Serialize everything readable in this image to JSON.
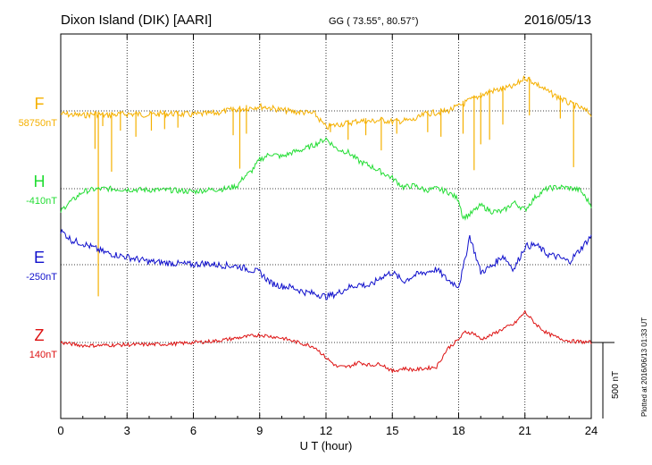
{
  "header": {
    "station": "Dixon Island (DIK)  [AARI]",
    "coords": "GG ( 73.55°,  80.57°)",
    "date": "2016/05/13"
  },
  "plotted_note": "Plotted at 2016/06/13 01:33 UT",
  "chart_data": {
    "type": "line",
    "xlabel": "U T (hour)",
    "xlim": [
      0,
      24
    ],
    "xticks": [
      0,
      3,
      6,
      9,
      12,
      15,
      18,
      21,
      24
    ],
    "xtick_labels": [
      "0",
      "3",
      "6",
      "9",
      "12",
      "15",
      "18",
      "21",
      "24"
    ],
    "grid": true,
    "scale_bar": {
      "label": "500 nT",
      "value_nT": 500
    },
    "series": [
      {
        "name": "F",
        "baseline_label": "58750nT",
        "baseline": 58750,
        "color": "#f5b000",
        "x": [
          0,
          0.5,
          1,
          1.5,
          2,
          2.5,
          3,
          3.5,
          4,
          4.5,
          5,
          5.5,
          6,
          6.5,
          7,
          7.5,
          8,
          8.5,
          9,
          9.5,
          10,
          10.5,
          11,
          11.5,
          12,
          12.5,
          13,
          13.5,
          14,
          14.5,
          15,
          15.5,
          16,
          16.5,
          17,
          17.5,
          18,
          18.5,
          19,
          19.5,
          20,
          20.5,
          21,
          21.5,
          22,
          22.5,
          23,
          23.5,
          24
        ],
        "y": [
          58750,
          58745,
          58740,
          58750,
          58740,
          58745,
          58750,
          58748,
          58745,
          58750,
          58752,
          58748,
          58745,
          58750,
          58755,
          58770,
          58780,
          58790,
          58800,
          58790,
          58775,
          58765,
          58760,
          58750,
          58660,
          58680,
          58690,
          58705,
          58700,
          58710,
          58700,
          58705,
          58710,
          58750,
          58760,
          58770,
          58800,
          58840,
          58870,
          58900,
          58915,
          58930,
          58990,
          58950,
          58900,
          58860,
          58820,
          58790,
          58750
        ],
        "spikes": [
          {
            "x": 1.55,
            "y": 58500
          },
          {
            "x": 1.7,
            "y": 57530
          },
          {
            "x": 1.9,
            "y": 58650
          },
          {
            "x": 2.3,
            "y": 58350
          },
          {
            "x": 2.7,
            "y": 58620
          },
          {
            "x": 3.4,
            "y": 58580
          },
          {
            "x": 4.1,
            "y": 58620
          },
          {
            "x": 4.7,
            "y": 58630
          },
          {
            "x": 5.3,
            "y": 58640
          },
          {
            "x": 7.8,
            "y": 58590
          },
          {
            "x": 8.1,
            "y": 58370
          },
          {
            "x": 8.4,
            "y": 58600
          },
          {
            "x": 12.2,
            "y": 58610
          },
          {
            "x": 13.0,
            "y": 58560
          },
          {
            "x": 13.8,
            "y": 58590
          },
          {
            "x": 14.5,
            "y": 58490
          },
          {
            "x": 15.2,
            "y": 58600
          },
          {
            "x": 16.6,
            "y": 58610
          },
          {
            "x": 17.2,
            "y": 58580
          },
          {
            "x": 18.2,
            "y": 58600
          },
          {
            "x": 18.7,
            "y": 58360
          },
          {
            "x": 19.0,
            "y": 58530
          },
          {
            "x": 19.4,
            "y": 58560
          },
          {
            "x": 20.0,
            "y": 58660
          },
          {
            "x": 21.2,
            "y": 58720
          },
          {
            "x": 22.6,
            "y": 58700
          },
          {
            "x": 23.2,
            "y": 58380
          }
        ]
      },
      {
        "name": "H",
        "baseline_label": "-410nT",
        "baseline": -410,
        "color": "#22dd33",
        "x": [
          0,
          0.3,
          0.6,
          1,
          1.5,
          2,
          3,
          4,
          5,
          6,
          6.5,
          7,
          7.5,
          8,
          8.3,
          8.6,
          9,
          9.5,
          10,
          10.5,
          11,
          11.5,
          12,
          12.5,
          13,
          13.5,
          14,
          14.5,
          15,
          15.5,
          16,
          16.5,
          17,
          17.5,
          18,
          18.2,
          18.5,
          19,
          19.5,
          20,
          20.5,
          21,
          21.5,
          22,
          22.5,
          23,
          23.5,
          24
        ],
        "y": [
          -560,
          -510,
          -480,
          -430,
          -415,
          -410,
          -415,
          -418,
          -420,
          -430,
          -420,
          -415,
          -410,
          -390,
          -330,
          -300,
          -220,
          -180,
          -200,
          -170,
          -150,
          -120,
          -80,
          -150,
          -170,
          -230,
          -260,
          -300,
          -340,
          -400,
          -390,
          -420,
          -410,
          -430,
          -480,
          -600,
          -580,
          -520,
          -560,
          -560,
          -500,
          -550,
          -460,
          -410,
          -400,
          -405,
          -420,
          -520
        ],
        "noise": 18
      },
      {
        "name": "E",
        "baseline_label": "-250nT",
        "baseline": -250,
        "color": "#1010cc",
        "x": [
          0,
          0.2,
          0.5,
          1,
          1.5,
          2,
          3,
          4,
          5,
          6,
          6.5,
          7,
          8,
          9,
          9.5,
          10,
          10.5,
          11,
          11.5,
          12,
          12.5,
          13,
          13.5,
          14,
          14.5,
          15,
          15.5,
          16,
          16.5,
          17,
          17.5,
          18,
          18.2,
          18.5,
          19,
          19.5,
          20,
          20.5,
          21,
          21.5,
          22,
          22.5,
          23,
          23.5,
          24
        ],
        "y": [
          -30,
          -50,
          -90,
          -110,
          -140,
          -170,
          -200,
          -230,
          -240,
          -250,
          -240,
          -250,
          -260,
          -300,
          -370,
          -390,
          -400,
          -430,
          -440,
          -460,
          -440,
          -400,
          -380,
          -390,
          -330,
          -300,
          -360,
          -320,
          -300,
          -280,
          -350,
          -390,
          -280,
          -60,
          -300,
          -260,
          -190,
          -280,
          -130,
          -120,
          -180,
          -200,
          -230,
          -150,
          -60
        ],
        "noise": 22
      },
      {
        "name": "Z",
        "baseline_label": "140nT",
        "baseline": 140,
        "color": "#dd1111",
        "x": [
          0,
          0.5,
          1,
          1.5,
          2,
          3,
          4,
          5,
          6,
          7,
          8,
          9,
          9.5,
          10,
          10.5,
          11,
          11.5,
          12,
          12.5,
          13,
          13.5,
          14,
          14.5,
          15,
          15.5,
          16,
          16.5,
          17,
          17.5,
          18,
          18.3,
          18.7,
          19,
          19.5,
          20,
          20.5,
          21,
          21.5,
          22,
          22.5,
          23,
          23.5,
          24
        ],
        "y": [
          140,
          130,
          120,
          120,
          122,
          125,
          127,
          130,
          140,
          150,
          170,
          190,
          180,
          170,
          150,
          130,
          110,
          40,
          -20,
          -20,
          10,
          -10,
          0,
          -50,
          -30,
          -40,
          -30,
          -20,
          100,
          160,
          210,
          200,
          160,
          190,
          230,
          260,
          340,
          260,
          200,
          170,
          150,
          145,
          140
        ],
        "noise": 12
      }
    ]
  }
}
